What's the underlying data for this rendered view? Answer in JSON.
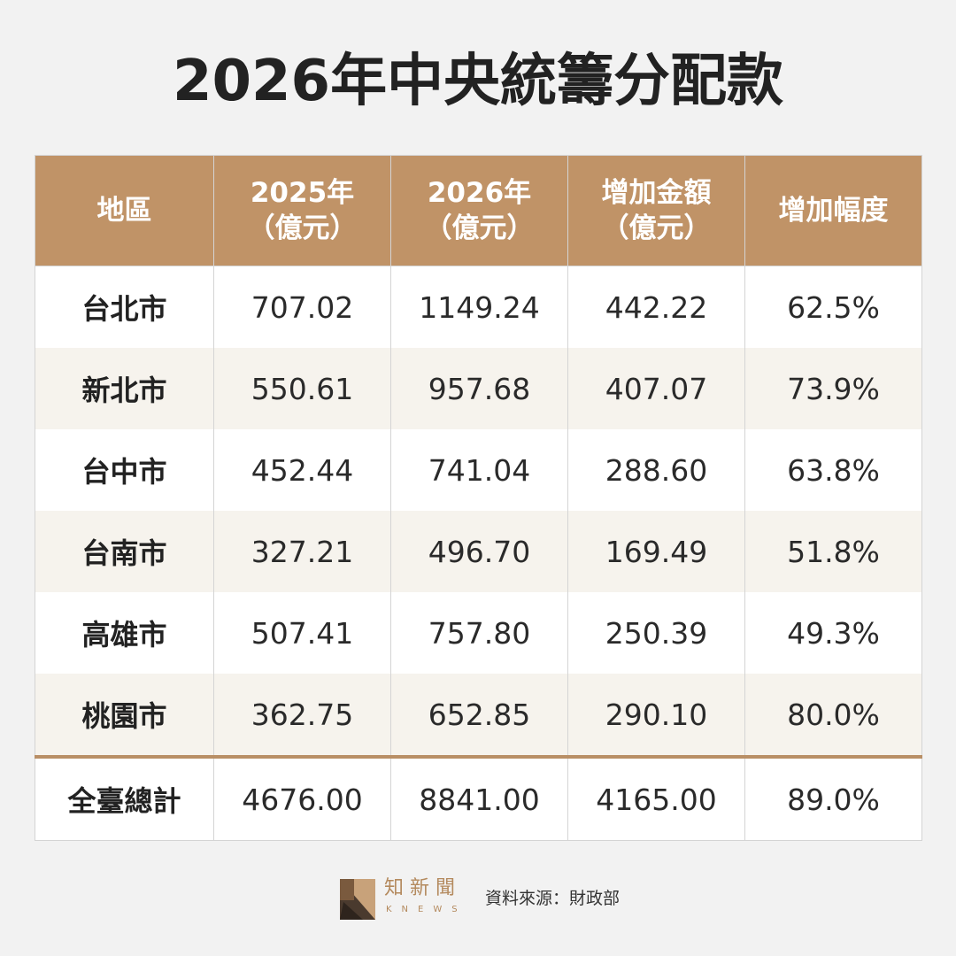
{
  "title": "2026年中央統籌分配款",
  "table": {
    "headers": [
      {
        "line1": "地區",
        "line2": ""
      },
      {
        "line1": "2025年",
        "line2": "（億元）"
      },
      {
        "line1": "2026年",
        "line2": "（億元）"
      },
      {
        "line1": "增加金額",
        "line2": "（億元）"
      },
      {
        "line1": "增加幅度",
        "line2": ""
      }
    ],
    "rows": [
      [
        "台北市",
        "707.02",
        "1149.24",
        "442.22",
        "62.5%"
      ],
      [
        "新北市",
        "550.61",
        "957.68",
        "407.07",
        "73.9%"
      ],
      [
        "台中市",
        "452.44",
        "741.04",
        "288.60",
        "63.8%"
      ],
      [
        "台南市",
        "327.21",
        "496.70",
        "169.49",
        "51.8%"
      ],
      [
        "高雄市",
        "507.41",
        "757.80",
        "250.39",
        "49.3%"
      ],
      [
        "桃園市",
        "362.75",
        "652.85",
        "290.10",
        "80.0%"
      ]
    ],
    "total": [
      "全臺總計",
      "4676.00",
      "8841.00",
      "4165.00",
      "89.0%"
    ]
  },
  "footer": {
    "logo_text": "知新聞",
    "logo_sub": "KNEWS",
    "source": "資料來源：財政部"
  },
  "colors": {
    "header_bg": "#c09367",
    "stripe_bg": "#f6f3ed",
    "total_rule": "#b98f66",
    "page_bg": "#f2f2f2"
  }
}
